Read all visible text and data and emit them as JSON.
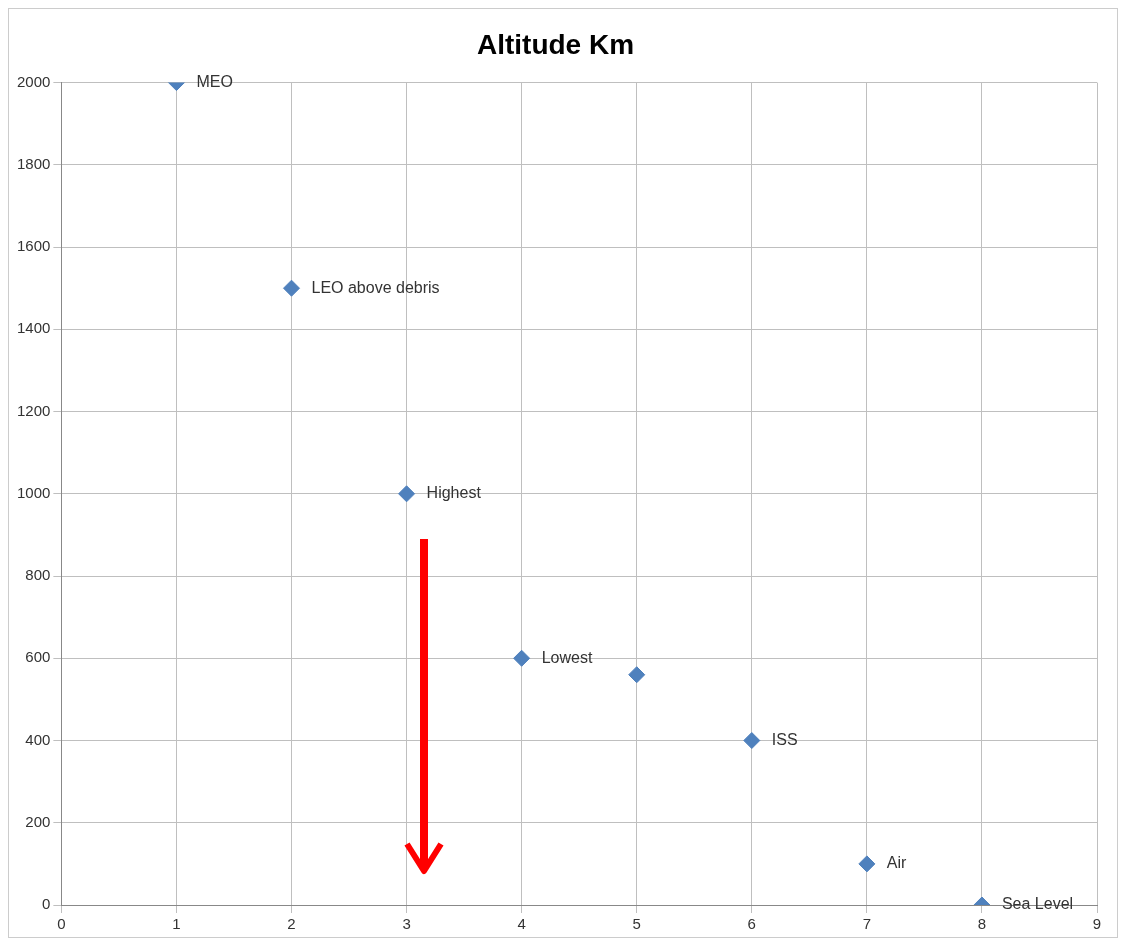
{
  "chart_data": {
    "type": "scatter",
    "title": "Altitude Km",
    "x": [
      1,
      2,
      3,
      4,
      5,
      6,
      7,
      8
    ],
    "values": [
      2000,
      1500,
      1000,
      600,
      560,
      400,
      100,
      0
    ],
    "color": "#4f81bd",
    "marker": "diamond",
    "grid": true,
    "legend": false,
    "xlim": [
      0,
      9
    ],
    "xticks": [
      0,
      1,
      2,
      3,
      4,
      5,
      6,
      7,
      8,
      9
    ],
    "ylim": [
      0,
      2000
    ],
    "yticks": [
      0,
      200,
      400,
      600,
      800,
      1000,
      1200,
      1400,
      1600,
      1800,
      2000
    ],
    "annotations": [
      {
        "text": "MEO",
        "x": 1,
        "y": 2000
      },
      {
        "text": "LEO above debris",
        "x": 2,
        "y": 1500
      },
      {
        "text": "Highest",
        "x": 3,
        "y": 1000
      },
      {
        "text": "Lowest",
        "x": 4,
        "y": 600
      },
      {
        "text": "ISS",
        "x": 6,
        "y": 400
      },
      {
        "text": "Air",
        "x": 7,
        "y": 100
      },
      {
        "text": "Sea Level",
        "x": 8,
        "y": 0
      }
    ]
  }
}
